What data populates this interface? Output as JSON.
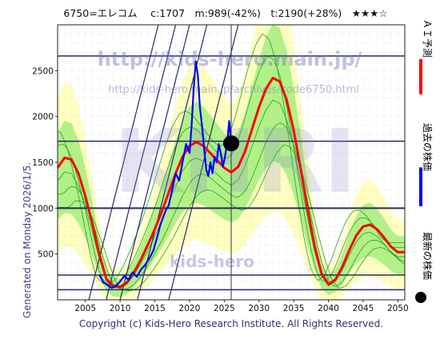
{
  "header": {
    "title": "6750=エレコム　 c:1707　m:989(-42%)　t:2190(+28%)　★★★☆"
  },
  "side_text": "Generated on Monday 2026/1/5.",
  "footer": "Copyright (c) Kids-Hero Research Institute. All Rights Reserved.",
  "watermarks": {
    "url_main": "http://kids-hero.main.jp/",
    "url_code": "http://kids-hero.main.jp/archives/code6750.html",
    "big": "KHRI",
    "bottom": "kids-hero"
  },
  "legend": [
    {
      "label": "ＡＩ予測",
      "color": "#ff0000",
      "shape": "line"
    },
    {
      "label": "過去の株価",
      "color": "#0000ff",
      "shape": "line"
    },
    {
      "label": "最新の株価",
      "color": "#000000",
      "shape": "dot"
    }
  ],
  "colors": {
    "ai": "#ff0000",
    "past": "#0000ff",
    "latest": "#000000",
    "band_outer": "#ffffc0",
    "band_inner": "#a8f080",
    "band_lines": "#22a022",
    "hlines": "#2a2a66",
    "diag": "#2a2a66"
  },
  "chart_data": {
    "type": "line",
    "title": "6750=エレコム　 c:1707　m:989(-42%)　t:2190(+28%)　★★★☆",
    "xlim": [
      2001,
      2051
    ],
    "ylim": [
      0,
      3000
    ],
    "x_ticks": [
      2005,
      2010,
      2015,
      2020,
      2025,
      2030,
      2035,
      2040,
      2045,
      2050
    ],
    "y_ticks": [
      500,
      1000,
      1500,
      2000,
      2500
    ],
    "grid": true,
    "legend_position": "right",
    "horizontal_levels": [
      110,
      270,
      1000,
      1730,
      2660
    ],
    "latest": {
      "x": 2026.0,
      "y": 1707
    },
    "series": [
      {
        "name": "ＡＩ予測",
        "color": "#ff0000",
        "points": [
          [
            2001,
            1440
          ],
          [
            2002,
            1550
          ],
          [
            2003,
            1530
          ],
          [
            2004,
            1380
          ],
          [
            2005,
            1130
          ],
          [
            2006,
            830
          ],
          [
            2007,
            500
          ],
          [
            2008,
            230
          ],
          [
            2009,
            150
          ],
          [
            2010,
            140
          ],
          [
            2011,
            190
          ],
          [
            2012,
            300
          ],
          [
            2013,
            440
          ],
          [
            2014,
            600
          ],
          [
            2015,
            770
          ],
          [
            2016,
            960
          ],
          [
            2017,
            1170
          ],
          [
            2018,
            1380
          ],
          [
            2019,
            1560
          ],
          [
            2020,
            1680
          ],
          [
            2021,
            1720
          ],
          [
            2022,
            1680
          ],
          [
            2023,
            1600
          ],
          [
            2024,
            1520
          ],
          [
            2025,
            1440
          ],
          [
            2026,
            1390
          ],
          [
            2027,
            1450
          ],
          [
            2028,
            1620
          ],
          [
            2029,
            1860
          ],
          [
            2030,
            2100
          ],
          [
            2031,
            2300
          ],
          [
            2032,
            2420
          ],
          [
            2033,
            2380
          ],
          [
            2034,
            2180
          ],
          [
            2035,
            1850
          ],
          [
            2036,
            1430
          ],
          [
            2037,
            990
          ],
          [
            2038,
            590
          ],
          [
            2039,
            290
          ],
          [
            2040,
            170
          ],
          [
            2041,
            220
          ],
          [
            2042,
            360
          ],
          [
            2043,
            540
          ],
          [
            2044,
            700
          ],
          [
            2045,
            800
          ],
          [
            2046,
            820
          ],
          [
            2047,
            770
          ],
          [
            2048,
            680
          ],
          [
            2049,
            580
          ],
          [
            2050,
            520
          ],
          [
            2051,
            520
          ]
        ]
      },
      {
        "name": "過去の株価",
        "color": "#0000ff",
        "points": [
          [
            2007.0,
            270
          ],
          [
            2007.6,
            190
          ],
          [
            2008.2,
            160
          ],
          [
            2008.8,
            130
          ],
          [
            2009.4,
            150
          ],
          [
            2010.0,
            200
          ],
          [
            2010.6,
            260
          ],
          [
            2011.2,
            220
          ],
          [
            2011.8,
            300
          ],
          [
            2012.4,
            250
          ],
          [
            2013.0,
            330
          ],
          [
            2013.6,
            380
          ],
          [
            2014.2,
            450
          ],
          [
            2014.8,
            540
          ],
          [
            2015.4,
            700
          ],
          [
            2015.8,
            820
          ],
          [
            2016.2,
            900
          ],
          [
            2016.6,
            980
          ],
          [
            2017.0,
            1030
          ],
          [
            2017.5,
            1200
          ],
          [
            2018.0,
            1380
          ],
          [
            2018.5,
            1300
          ],
          [
            2019.0,
            1500
          ],
          [
            2019.5,
            1700
          ],
          [
            2020.0,
            1600
          ],
          [
            2020.3,
            1900
          ],
          [
            2020.6,
            2300
          ],
          [
            2020.9,
            2600
          ],
          [
            2021.2,
            2450
          ],
          [
            2021.5,
            2100
          ],
          [
            2021.8,
            1900
          ],
          [
            2022.1,
            1650
          ],
          [
            2022.4,
            1420
          ],
          [
            2022.7,
            1350
          ],
          [
            2023.0,
            1500
          ],
          [
            2023.3,
            1380
          ],
          [
            2023.6,
            1560
          ],
          [
            2023.9,
            1500
          ],
          [
            2024.2,
            1700
          ],
          [
            2024.5,
            1600
          ],
          [
            2024.8,
            1450
          ],
          [
            2025.1,
            1560
          ],
          [
            2025.4,
            1700
          ],
          [
            2025.7,
            1950
          ],
          [
            2026.0,
            1707
          ]
        ]
      }
    ]
  }
}
